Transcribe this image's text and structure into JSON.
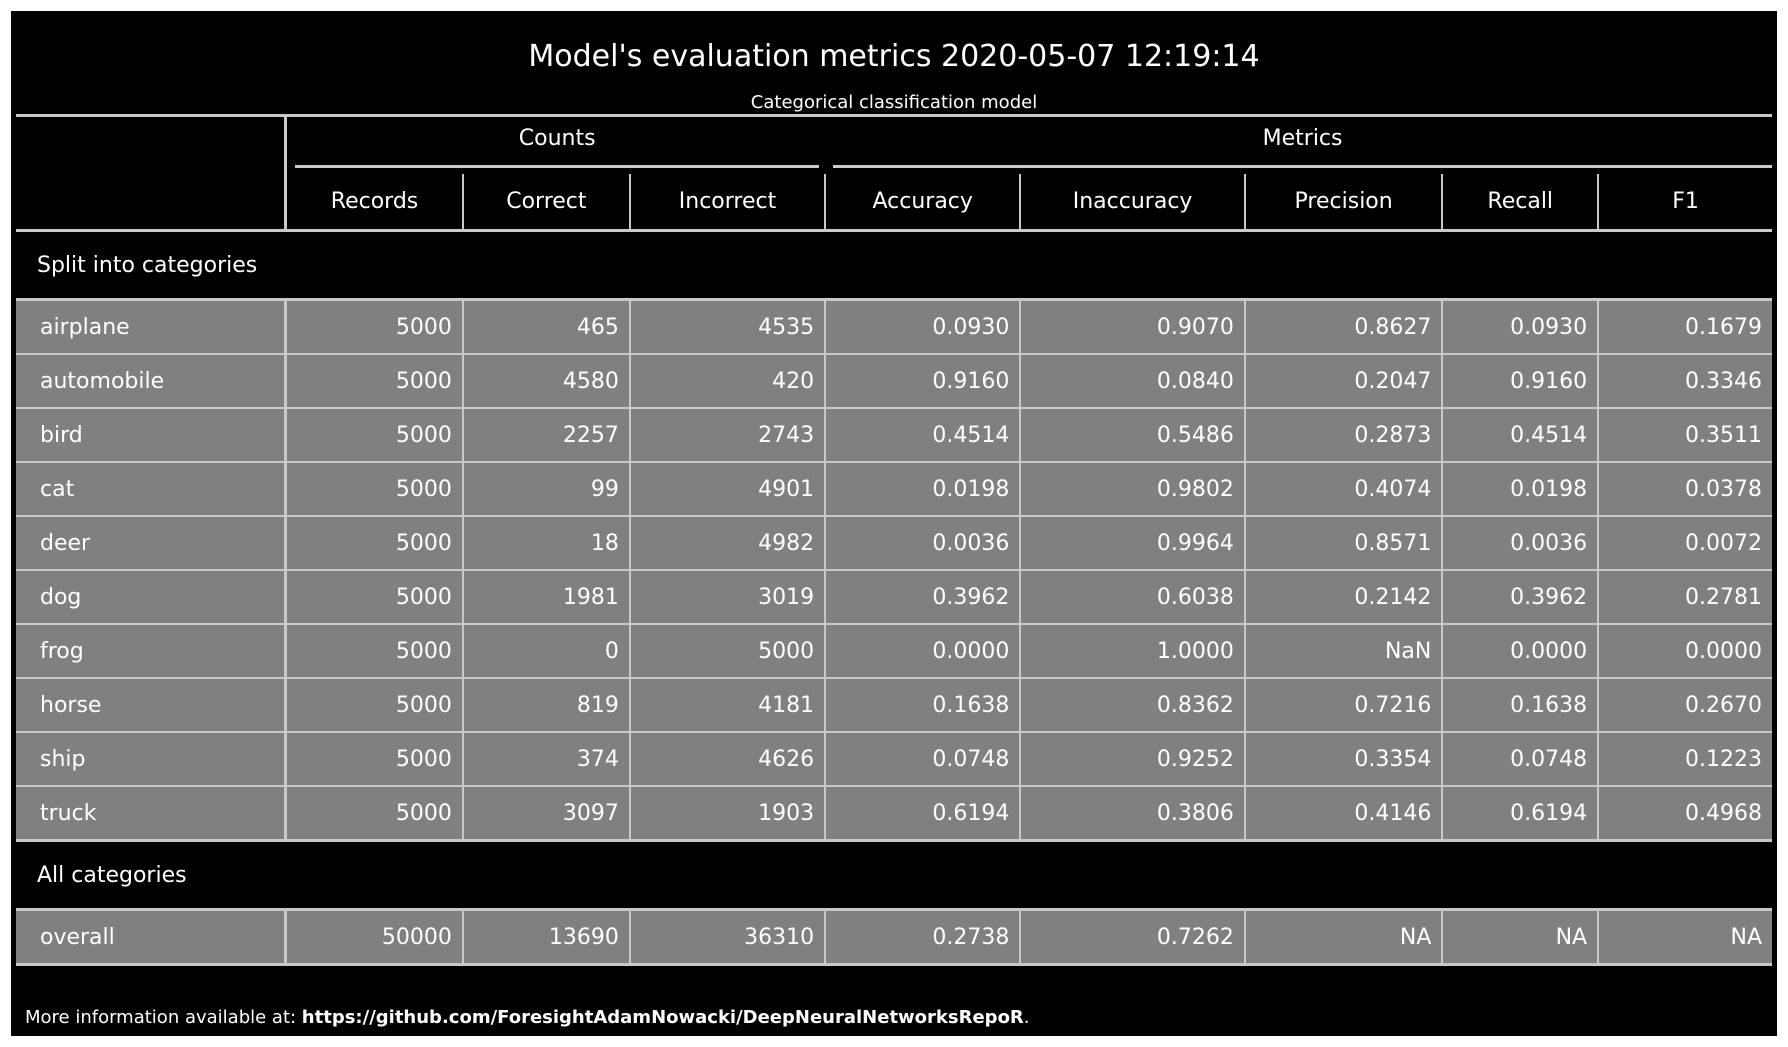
{
  "title": "Model's evaluation metrics 2020-05-07 12:19:14",
  "subtitle": "Categorical classification model",
  "table": {
    "groups": {
      "counts": "Counts",
      "metrics": "Metrics"
    },
    "columns": [
      "Records",
      "Correct",
      "Incorrect",
      "Accuracy",
      "Inaccuracy",
      "Precision",
      "Recall",
      "F1"
    ],
    "sections": [
      {
        "label": "Split into categories",
        "rows": [
          {
            "label": "airplane",
            "values": [
              "5000",
              "465",
              "4535",
              "0.0930",
              "0.9070",
              "0.8627",
              "0.0930",
              "0.1679"
            ]
          },
          {
            "label": "automobile",
            "values": [
              "5000",
              "4580",
              "420",
              "0.9160",
              "0.0840",
              "0.2047",
              "0.9160",
              "0.3346"
            ]
          },
          {
            "label": "bird",
            "values": [
              "5000",
              "2257",
              "2743",
              "0.4514",
              "0.5486",
              "0.2873",
              "0.4514",
              "0.3511"
            ]
          },
          {
            "label": "cat",
            "values": [
              "5000",
              "99",
              "4901",
              "0.0198",
              "0.9802",
              "0.4074",
              "0.0198",
              "0.0378"
            ]
          },
          {
            "label": "deer",
            "values": [
              "5000",
              "18",
              "4982",
              "0.0036",
              "0.9964",
              "0.8571",
              "0.0036",
              "0.0072"
            ]
          },
          {
            "label": "dog",
            "values": [
              "5000",
              "1981",
              "3019",
              "0.3962",
              "0.6038",
              "0.2142",
              "0.3962",
              "0.2781"
            ]
          },
          {
            "label": "frog",
            "values": [
              "5000",
              "0",
              "5000",
              "0.0000",
              "1.0000",
              "NaN",
              "0.0000",
              "0.0000"
            ]
          },
          {
            "label": "horse",
            "values": [
              "5000",
              "819",
              "4181",
              "0.1638",
              "0.8362",
              "0.7216",
              "0.1638",
              "0.2670"
            ]
          },
          {
            "label": "ship",
            "values": [
              "5000",
              "374",
              "4626",
              "0.0748",
              "0.9252",
              "0.3354",
              "0.0748",
              "0.1223"
            ]
          },
          {
            "label": "truck",
            "values": [
              "5000",
              "3097",
              "1903",
              "0.6194",
              "0.3806",
              "0.4146",
              "0.6194",
              "0.4968"
            ]
          }
        ]
      },
      {
        "label": "All categories",
        "rows": [
          {
            "label": "overall",
            "values": [
              "50000",
              "13690",
              "36310",
              "0.2738",
              "0.7262",
              "NA",
              "NA",
              "NA"
            ]
          }
        ]
      }
    ]
  },
  "footer": {
    "prefix": "More information available at: ",
    "link_text": "https://github.com/ForesightAdamNowacki/DeepNeuralNetworksRepoR",
    "suffix": "."
  },
  "colors": {
    "background": "#000000",
    "row_fill": "#808080",
    "rule": "#c8c8c8",
    "text": "#ffffff"
  }
}
